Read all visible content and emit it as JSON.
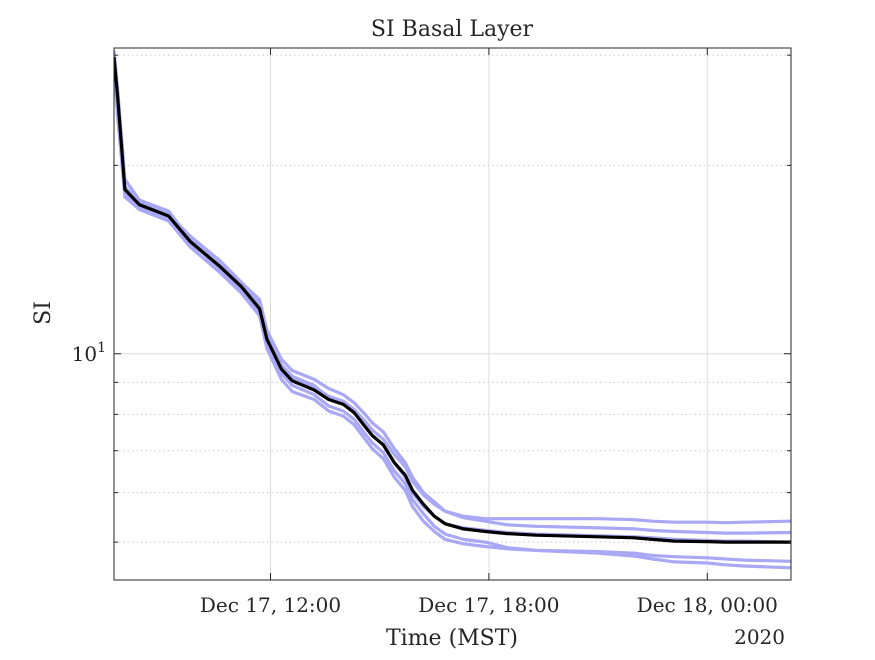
{
  "chart_data": {
    "type": "line",
    "title": "SI Basal Layer",
    "xlabel": "Time (MST)",
    "ylabel": "SI",
    "year_label": "2020",
    "x_ticks": [
      {
        "t": "2020-12-17T12:00",
        "label": "Dec 17, 12:00"
      },
      {
        "t": "2020-12-17T18:00",
        "label": "Dec 17, 18:00"
      },
      {
        "t": "2020-12-18T00:00",
        "label": "Dec 18, 00:00"
      }
    ],
    "xlim": [
      "2020-12-17T07:42",
      "2020-12-18T02:18"
    ],
    "y_scale": "log",
    "ylim": [
      4.35,
      30.8
    ],
    "y_major_tick": {
      "value": 10,
      "base": "10",
      "exp": "1"
    },
    "grid": true,
    "colors": {
      "ensemble": "#a8a8f5",
      "mean": "#000000"
    },
    "x": [
      "2020-12-17T07:42",
      "2020-12-17T07:48",
      "2020-12-17T08:00",
      "2020-12-17T08:24",
      "2020-12-17T09:12",
      "2020-12-17T09:48",
      "2020-12-17T10:36",
      "2020-12-17T11:12",
      "2020-12-17T11:42",
      "2020-12-17T11:54",
      "2020-12-17T12:18",
      "2020-12-17T12:36",
      "2020-12-17T13:12",
      "2020-12-17T13:36",
      "2020-12-17T14:00",
      "2020-12-17T14:18",
      "2020-12-17T14:36",
      "2020-12-17T14:48",
      "2020-12-17T15:06",
      "2020-12-17T15:24",
      "2020-12-17T15:42",
      "2020-12-17T15:54",
      "2020-12-17T16:12",
      "2020-12-17T16:30",
      "2020-12-17T16:48",
      "2020-12-17T17:18",
      "2020-12-17T17:54",
      "2020-12-17T18:30",
      "2020-12-17T19:18",
      "2020-12-17T21:00",
      "2020-12-17T22:00",
      "2020-12-17T22:30",
      "2020-12-17T23:06",
      "2020-12-18T00:00",
      "2020-12-18T00:30",
      "2020-12-18T01:00",
      "2020-12-18T02:18"
    ],
    "series": [
      {
        "values": [
          30.5,
          26.5,
          19.0,
          17.6,
          16.9,
          15.2,
          13.6,
          12.6,
          11.7,
          10.5,
          9.3,
          8.9,
          8.6,
          8.25,
          8.1,
          7.85,
          7.45,
          7.2,
          6.95,
          6.5,
          6.2,
          5.85,
          5.55,
          5.3,
          5.15,
          5.05,
          5.0,
          4.9,
          4.85,
          4.8,
          4.75,
          4.7,
          4.65,
          4.63,
          4.6,
          4.58,
          4.55
        ]
      },
      {
        "values": [
          29.5,
          25.5,
          18.5,
          17.4,
          16.8,
          15.3,
          14.0,
          12.9,
          12.0,
          10.7,
          9.6,
          9.2,
          8.9,
          8.5,
          8.35,
          8.05,
          7.65,
          7.4,
          7.15,
          6.7,
          6.35,
          6.0,
          5.7,
          5.5,
          5.35,
          5.27,
          5.22,
          5.18,
          5.15,
          5.12,
          5.1,
          5.08,
          5.05,
          5.03,
          5.02,
          5.02,
          5.0
        ]
      },
      {
        "values": [
          28.5,
          24.5,
          18.0,
          17.2,
          16.5,
          15.0,
          13.8,
          12.8,
          11.9,
          10.6,
          9.5,
          9.1,
          8.85,
          8.55,
          8.4,
          8.15,
          7.8,
          7.55,
          7.3,
          6.9,
          6.6,
          6.25,
          5.95,
          5.75,
          5.6,
          5.5,
          5.45,
          5.45,
          5.45,
          5.45,
          5.43,
          5.4,
          5.38,
          5.38,
          5.37,
          5.38,
          5.4
        ]
      },
      {
        "values": [
          30.0,
          25.0,
          18.3,
          17.3,
          16.7,
          15.4,
          14.1,
          13.0,
          12.2,
          10.9,
          9.8,
          9.4,
          9.1,
          8.8,
          8.6,
          8.35,
          8.0,
          7.75,
          7.5,
          7.05,
          6.7,
          6.35,
          6.0,
          5.8,
          5.6,
          5.47,
          5.4,
          5.33,
          5.3,
          5.27,
          5.25,
          5.22,
          5.2,
          5.18,
          5.17,
          5.17,
          5.18
        ]
      },
      {
        "values": [
          29.0,
          24.0,
          17.8,
          17.0,
          16.3,
          14.8,
          13.5,
          12.5,
          11.5,
          10.2,
          9.1,
          8.7,
          8.45,
          8.1,
          7.95,
          7.7,
          7.3,
          7.05,
          6.8,
          6.35,
          6.05,
          5.7,
          5.4,
          5.2,
          5.05,
          4.97,
          4.92,
          4.88,
          4.85,
          4.83,
          4.8,
          4.76,
          4.74,
          4.72,
          4.7,
          4.68,
          4.66
        ]
      }
    ],
    "mean": {
      "values": [
        29.8,
        25.8,
        18.3,
        17.3,
        16.6,
        15.1,
        13.8,
        12.8,
        11.8,
        10.55,
        9.45,
        9.05,
        8.75,
        8.45,
        8.3,
        8.05,
        7.65,
        7.4,
        7.15,
        6.7,
        6.4,
        6.05,
        5.75,
        5.5,
        5.35,
        5.25,
        5.2,
        5.16,
        5.13,
        5.1,
        5.08,
        5.05,
        5.02,
        5.01,
        5.0,
        5.0,
        5.0
      ]
    }
  }
}
